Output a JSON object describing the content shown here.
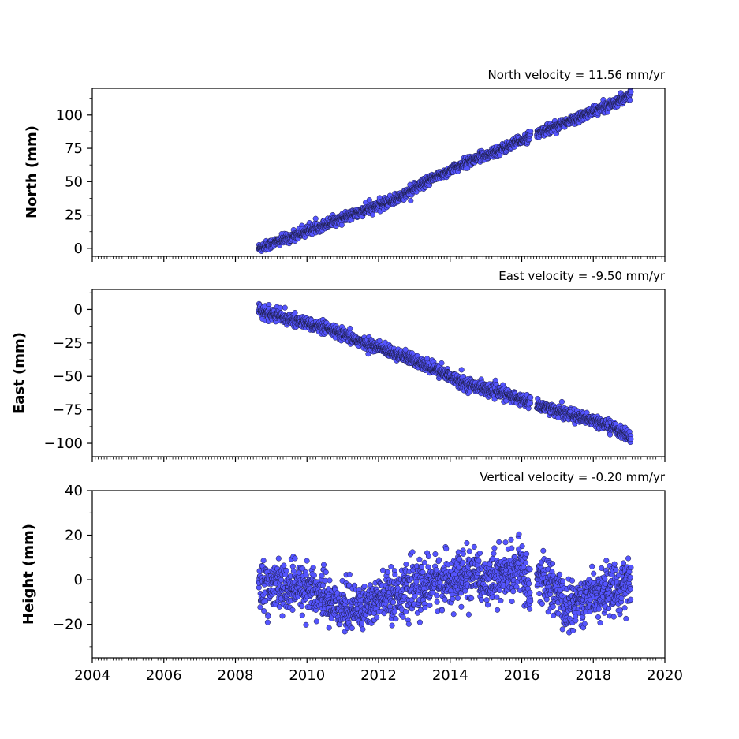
{
  "colors": {
    "marker_fill": "#5555ff",
    "marker_edge": "#1a1a40"
  },
  "chart_data": [
    {
      "type": "scatter",
      "title": "North velocity = 11.56 mm/yr",
      "xlabel": "",
      "ylabel": "North (mm)",
      "xlim": [
        2004,
        2020
      ],
      "ylim": [
        -6,
        120
      ],
      "yticks": [
        0,
        25,
        50,
        75,
        100
      ],
      "ytick_labels": [
        "0",
        "25",
        "50",
        "75",
        "100"
      ],
      "series": [
        {
          "trend": [
            [
              2008.65,
              0
            ],
            [
              2009.5,
              8
            ],
            [
              2010.5,
              18
            ],
            [
              2011.5,
              27
            ],
            [
              2012.5,
              37
            ],
            [
              2013.5,
              52
            ],
            [
              2014.5,
              65
            ],
            [
              2015.5,
              75
            ],
            [
              2016.3,
              85
            ],
            [
              2017.5,
              97
            ],
            [
              2018.5,
              108
            ],
            [
              2019.05,
              116
            ]
          ],
          "gaps": [
            [
              2016.25,
              2016.42
            ]
          ],
          "noise": 1.8
        }
      ]
    },
    {
      "type": "scatter",
      "title": "East velocity = -9.50 mm/yr",
      "xlabel": "",
      "ylabel": "East (mm)",
      "xlim": [
        2004,
        2020
      ],
      "ylim": [
        -110,
        15
      ],
      "yticks": [
        0,
        -25,
        -50,
        -75,
        -100
      ],
      "ytick_labels": [
        "0",
        "−25",
        "−50",
        "−75",
        "−100"
      ],
      "series": [
        {
          "trend": [
            [
              2008.65,
              -1
            ],
            [
              2009.5,
              -7
            ],
            [
              2010.5,
              -14
            ],
            [
              2011.5,
              -24
            ],
            [
              2012.5,
              -33
            ],
            [
              2013.5,
              -44
            ],
            [
              2014.5,
              -56
            ],
            [
              2015.5,
              -63
            ],
            [
              2016.3,
              -70
            ],
            [
              2017.5,
              -80
            ],
            [
              2018.5,
              -87
            ],
            [
              2019.05,
              -96
            ]
          ],
          "gaps": [
            [
              2016.25,
              2016.42
            ]
          ],
          "noise": 2.2
        }
      ]
    },
    {
      "type": "scatter",
      "title": "Vertical velocity = -0.20 mm/yr",
      "xlabel": "",
      "ylabel": "Height (mm)",
      "xlim": [
        2004,
        2020
      ],
      "xticks": [
        2004,
        2006,
        2008,
        2010,
        2012,
        2014,
        2016,
        2018,
        2020
      ],
      "xtick_labels": [
        "2004",
        "2006",
        "2008",
        "2010",
        "2012",
        "2014",
        "2016",
        "2018",
        "2020"
      ],
      "ylim": [
        -35,
        40
      ],
      "yticks": [
        40,
        20,
        0,
        -20
      ],
      "ytick_labels": [
        "40",
        "20",
        "0",
        "−20"
      ],
      "series": [
        {
          "trend": [
            [
              2008.65,
              -3
            ],
            [
              2009.5,
              -4
            ],
            [
              2010.0,
              -3
            ],
            [
              2010.5,
              -9
            ],
            [
              2011.0,
              -12
            ],
            [
              2011.5,
              -13
            ],
            [
              2012.0,
              -9
            ],
            [
              2012.5,
              -6
            ],
            [
              2013.0,
              -5
            ],
            [
              2013.5,
              -1
            ],
            [
              2014.0,
              0
            ],
            [
              2014.5,
              1
            ],
            [
              2015.0,
              1
            ],
            [
              2015.5,
              2
            ],
            [
              2016.0,
              6
            ],
            [
              2016.2,
              -4
            ],
            [
              2016.5,
              2
            ],
            [
              2017.0,
              -6
            ],
            [
              2017.3,
              -14
            ],
            [
              2017.7,
              -8
            ],
            [
              2018.0,
              -6
            ],
            [
              2018.5,
              -4
            ],
            [
              2019.05,
              -2
            ]
          ],
          "gaps": [
            [
              2016.25,
              2016.42
            ]
          ],
          "noise": 5.5
        }
      ]
    }
  ]
}
